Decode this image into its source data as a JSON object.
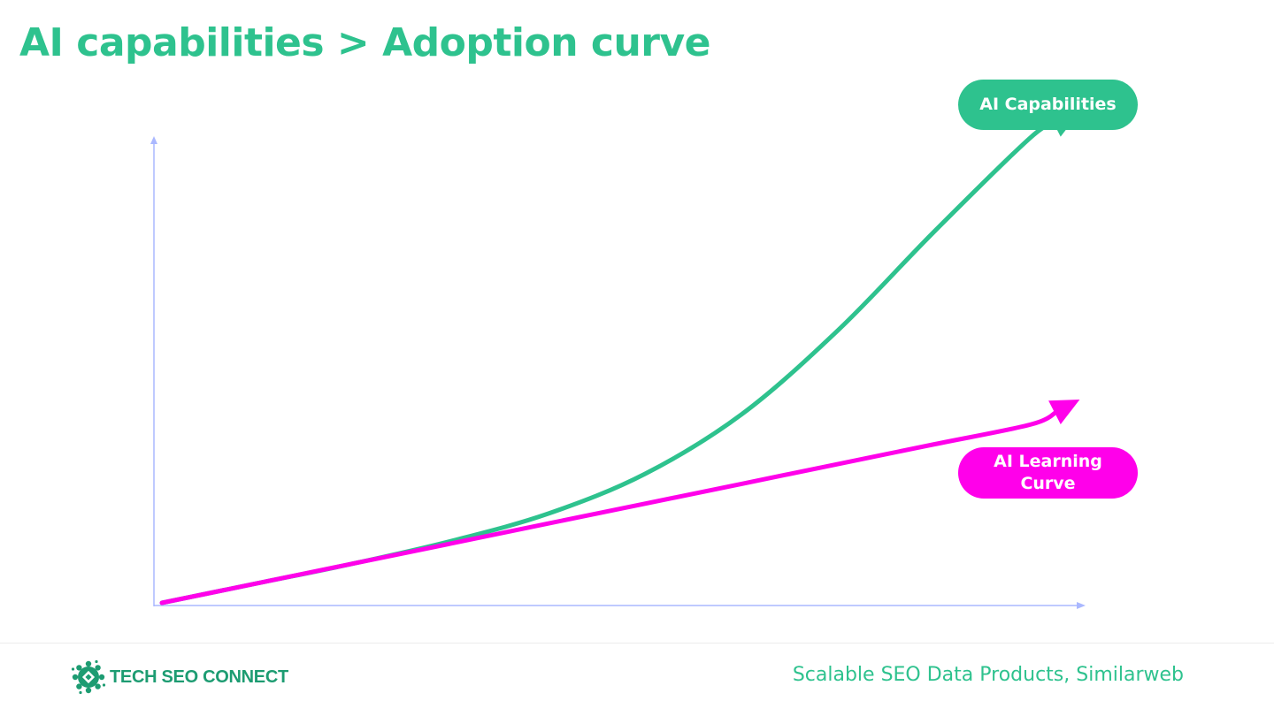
{
  "slide": {
    "title": "AI capabilities > Adoption curve"
  },
  "chart_data": {
    "type": "line",
    "title": "AI capabilities > Adoption curve",
    "xlabel": "",
    "ylabel": "",
    "x": [
      0,
      10,
      20,
      30,
      40,
      50,
      60,
      70,
      80,
      90,
      95
    ],
    "xlim": [
      0,
      100
    ],
    "ylim": [
      0,
      100
    ],
    "grid": false,
    "series": [
      {
        "name": "AI Capabilities",
        "color": "#2ec28e",
        "values": [
          0,
          4,
          8,
          12.5,
          18,
          26,
          38,
          55,
          75,
          94,
          99
        ]
      },
      {
        "name": "AI Learning Curve",
        "color": "#ff00ea",
        "values": [
          0,
          4,
          8,
          12,
          16,
          20,
          24,
          28,
          32,
          36,
          41
        ]
      }
    ]
  },
  "labels": {
    "capabilities": "AI Capabilities",
    "learning": "AI Learning Curve"
  },
  "footer": {
    "logo_text": "TECH SEO CONNECT",
    "credit": "Scalable SEO Data Products, Similarweb"
  },
  "colors": {
    "accent": "#2ec28e",
    "magenta": "#ff00ea",
    "axis": "#aab8ff",
    "logo": "#1d9c72"
  },
  "icons": {
    "logo": "gear-logo-icon"
  }
}
